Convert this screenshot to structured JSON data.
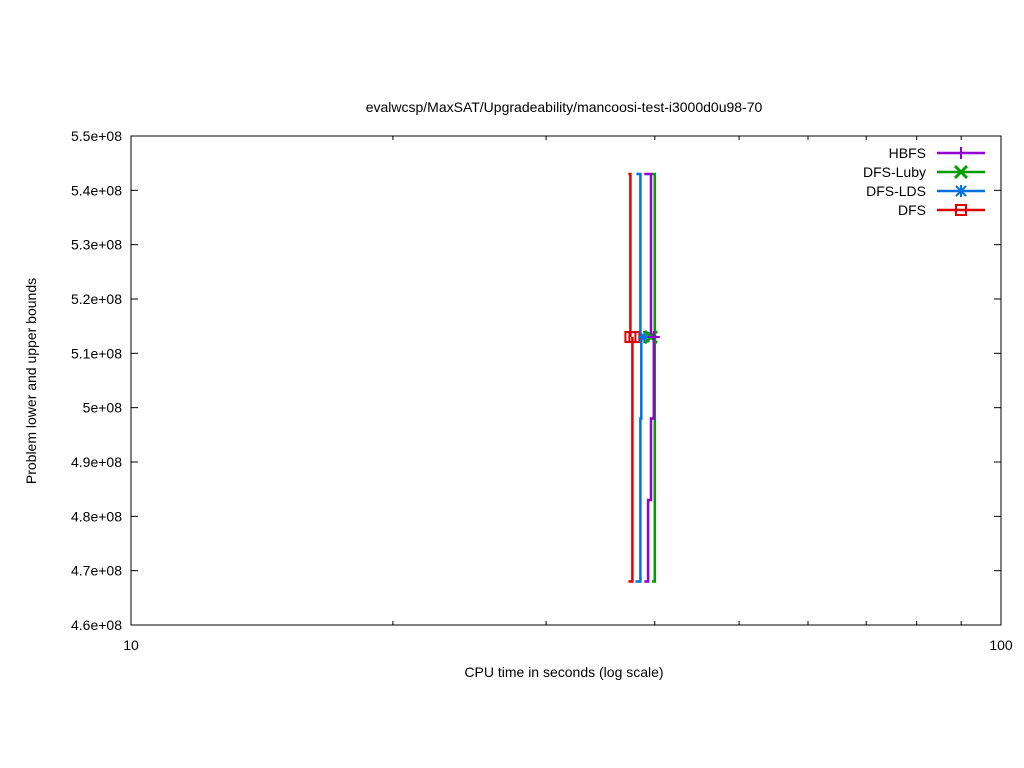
{
  "chart_data": {
    "type": "line",
    "title": "evalwcsp/MaxSAT/Upgradeability/mancoosi-test-i3000d0u98-70",
    "xlabel": "CPU time in seconds (log scale)",
    "ylabel": "Problem lower and upper bounds",
    "x_scale": "log",
    "xlim": [
      10,
      100
    ],
    "ylim": [
      460000000,
      550000000
    ],
    "x_ticks": [
      10,
      100
    ],
    "x_tick_labels": [
      "10",
      "100"
    ],
    "y_ticks": [
      460000000,
      470000000,
      480000000,
      490000000,
      500000000,
      510000000,
      520000000,
      530000000,
      540000000,
      550000000
    ],
    "y_tick_labels": [
      "4.6e+08",
      "4.7e+08",
      "4.8e+08",
      "4.9e+08",
      "5e+08",
      "5.1e+08",
      "5.2e+08",
      "5.3e+08",
      "5.4e+08",
      "5.5e+08"
    ],
    "grid": false,
    "legend_position": "top-right",
    "series": [
      {
        "name": "HBFS",
        "color": "#9400d3",
        "marker": "plus",
        "upper": [
          [
            38.9,
            543000000
          ],
          [
            39.6,
            543000000
          ],
          [
            39.6,
            513000000
          ],
          [
            40.2,
            513000000
          ]
        ],
        "lower": [
          [
            38.9,
            468000000
          ],
          [
            39.3,
            468000000
          ],
          [
            39.3,
            483000000
          ],
          [
            39.6,
            483000000
          ],
          [
            39.6,
            498000000
          ],
          [
            39.9,
            498000000
          ],
          [
            39.9,
            513000000
          ],
          [
            40.2,
            513000000
          ]
        ],
        "marker_points": [
          [
            39.9,
            513000000
          ]
        ]
      },
      {
        "name": "DFS-Luby",
        "color": "#009e00",
        "marker": "cross",
        "upper": [
          [
            39.7,
            543000000
          ],
          [
            40.0,
            543000000
          ],
          [
            40.0,
            513000000
          ]
        ],
        "lower": [
          [
            39.7,
            468000000
          ],
          [
            40.0,
            468000000
          ],
          [
            40.0,
            513000000
          ]
        ],
        "marker_points": [
          [
            39.6,
            513000000
          ]
        ]
      },
      {
        "name": "DFS-LDS",
        "color": "#0072e0",
        "marker": "star",
        "upper": [
          [
            38.1,
            543000000
          ],
          [
            38.5,
            543000000
          ],
          [
            38.5,
            513000000
          ]
        ],
        "lower": [
          [
            38.0,
            468000000
          ],
          [
            38.5,
            468000000
          ],
          [
            38.5,
            498000000
          ],
          [
            38.6,
            498000000
          ],
          [
            38.6,
            513000000
          ]
        ],
        "marker_points": [
          [
            38.9,
            513000000
          ]
        ]
      },
      {
        "name": "DFS",
        "color": "#e00000",
        "marker": "square",
        "upper": [
          [
            37.3,
            543000000
          ],
          [
            37.5,
            543000000
          ],
          [
            37.5,
            513000000
          ]
        ],
        "lower": [
          [
            37.3,
            468000000
          ],
          [
            37.7,
            468000000
          ],
          [
            37.7,
            513000000
          ]
        ],
        "marker_points": [
          [
            37.5,
            513000000
          ],
          [
            37.9,
            513000000
          ]
        ]
      }
    ]
  }
}
